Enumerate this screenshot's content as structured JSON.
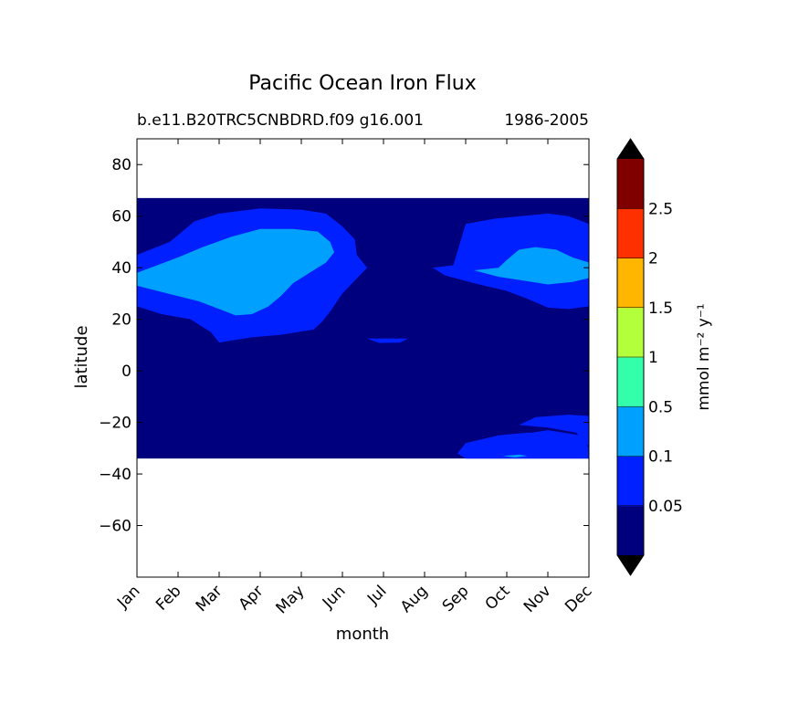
{
  "chart_data": {
    "type": "heatmap",
    "title": "Pacific Ocean Iron Flux",
    "subtitle_left": "b.e11.B20TRC5CNBDRD.f09 g16.001",
    "subtitle_right": "1986-2005",
    "xlabel": "month",
    "ylabel": "latitude",
    "x_ticks": [
      "Jan",
      "Feb",
      "Mar",
      "Apr",
      "May",
      "Jun",
      "Jul",
      "Aug",
      "Sep",
      "Oct",
      "Nov",
      "Dec"
    ],
    "x_range": [
      1,
      12
    ],
    "ylim": [
      -80,
      90
    ],
    "y_ticks": [
      80,
      60,
      40,
      20,
      0,
      -20,
      -40,
      -60
    ],
    "y_tick_labels": [
      "80",
      "60",
      "40",
      "20",
      "0",
      "−20",
      "−40",
      "−60"
    ],
    "data_lat_range": [
      -34,
      67
    ],
    "colorbar": {
      "label": "mmol m⁻² y⁻¹",
      "extend": "both",
      "tick_labels": [
        "0.05",
        "0.1",
        "0.5",
        "1",
        "1.5",
        "2",
        "2.5"
      ],
      "level_colors": [
        "#00007f",
        "#0020ff",
        "#00a0ff",
        "#33ffaa",
        "#b3ff3c",
        "#ffb600",
        "#ff3000",
        "#800000"
      ],
      "under_color": "#000000",
      "over_color": "#000000"
    },
    "regions": [
      {
        "level": 0,
        "points": [
          [
            1,
            67
          ],
          [
            12,
            67
          ],
          [
            12,
            -34
          ],
          [
            1,
            -34
          ]
        ]
      },
      {
        "level": 1,
        "points": [
          [
            1,
            45
          ],
          [
            1.8,
            50
          ],
          [
            2.4,
            58
          ],
          [
            3,
            61
          ],
          [
            4,
            63
          ],
          [
            5,
            62.5
          ],
          [
            5.6,
            61
          ],
          [
            6,
            56
          ],
          [
            6.3,
            51
          ],
          [
            6.35,
            45
          ],
          [
            6.6,
            40
          ],
          [
            6.3,
            35
          ],
          [
            6,
            30
          ],
          [
            5.7,
            23
          ],
          [
            5.5,
            19
          ],
          [
            5.3,
            16
          ],
          [
            4.5,
            14
          ],
          [
            3.8,
            13
          ],
          [
            3.4,
            12
          ],
          [
            3,
            11
          ],
          [
            2.8,
            15
          ],
          [
            2.3,
            20
          ],
          [
            1.6,
            22
          ],
          [
            1,
            25
          ]
        ]
      },
      {
        "level": 1,
        "points": [
          [
            8.2,
            40
          ],
          [
            8.7,
            41
          ],
          [
            9,
            57
          ],
          [
            9.7,
            59
          ],
          [
            11,
            61
          ],
          [
            11.5,
            60
          ],
          [
            12,
            57
          ],
          [
            12,
            25
          ],
          [
            11.5,
            24
          ],
          [
            11,
            24.5
          ],
          [
            10.5,
            28
          ],
          [
            10,
            31
          ],
          [
            9.2,
            34
          ],
          [
            8.5,
            37
          ]
        ]
      },
      {
        "level": 1,
        "points": [
          [
            6.6,
            12.5
          ],
          [
            7.6,
            12.5
          ],
          [
            7.4,
            11
          ],
          [
            6.9,
            10.8
          ]
        ]
      },
      {
        "level": 1,
        "points": [
          [
            10.3,
            -21
          ],
          [
            10.7,
            -18
          ],
          [
            11.5,
            -17
          ],
          [
            12,
            -17.5
          ],
          [
            12,
            -29
          ],
          [
            11.7,
            -27
          ],
          [
            11.2,
            -24
          ],
          [
            10.5,
            -24
          ],
          [
            9.8,
            -25
          ],
          [
            9,
            -28
          ],
          [
            8.8,
            -32
          ],
          [
            9,
            -34
          ],
          [
            12,
            -34
          ],
          [
            12,
            -32
          ],
          [
            11.7,
            -24
          ],
          [
            11,
            -22
          ]
        ]
      },
      {
        "level": 1,
        "points": [
          [
            9.3,
            -31
          ],
          [
            9.8,
            -26
          ],
          [
            11,
            -23
          ],
          [
            11.8,
            -25
          ],
          [
            12,
            -30
          ],
          [
            12,
            -34
          ],
          [
            9,
            -34
          ]
        ]
      },
      {
        "level": 2,
        "points": [
          [
            1,
            38
          ],
          [
            1.5,
            41
          ],
          [
            2,
            44
          ],
          [
            2.6,
            48
          ],
          [
            3.3,
            52
          ],
          [
            4,
            55
          ],
          [
            4.8,
            55
          ],
          [
            5.4,
            54
          ],
          [
            5.7,
            50
          ],
          [
            5.8,
            46
          ],
          [
            5.6,
            42
          ],
          [
            5.2,
            38
          ],
          [
            4.8,
            34
          ],
          [
            4.5,
            29
          ],
          [
            4.2,
            25
          ],
          [
            3.8,
            22
          ],
          [
            3.4,
            21.5
          ],
          [
            3,
            24
          ],
          [
            2.5,
            27
          ],
          [
            2,
            29
          ],
          [
            1.5,
            31
          ],
          [
            1,
            33
          ]
        ]
      },
      {
        "level": 2,
        "points": [
          [
            9.2,
            39
          ],
          [
            9.8,
            40
          ],
          [
            10,
            43
          ],
          [
            10.3,
            47
          ],
          [
            10.7,
            48
          ],
          [
            11.2,
            47
          ],
          [
            11.6,
            44
          ],
          [
            12,
            42
          ],
          [
            12,
            36
          ],
          [
            11.6,
            34.5
          ],
          [
            11,
            33.5
          ],
          [
            10.4,
            35
          ],
          [
            9.8,
            36.5
          ]
        ]
      },
      {
        "level": 2,
        "points": [
          [
            9.9,
            -33
          ],
          [
            10.3,
            -32.5
          ],
          [
            10.5,
            -33
          ],
          [
            10.2,
            -33.6
          ]
        ]
      }
    ]
  }
}
